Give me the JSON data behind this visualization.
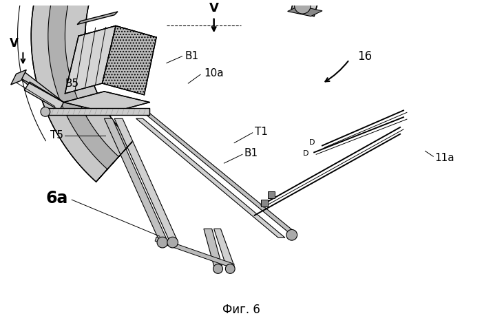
{
  "caption": "Фиг. 6",
  "background_color": "#ffffff",
  "labels": {
    "V_top": "V",
    "V_left": "V",
    "B1_top": "B1",
    "B1_mid": "B1",
    "B5": "B5",
    "T1": "T1",
    "T5": "T5",
    "10a": "10a",
    "6a": "6a",
    "16": "16",
    "11a": "11a"
  },
  "caption_fontsize": 12,
  "label_fontsize": 11
}
